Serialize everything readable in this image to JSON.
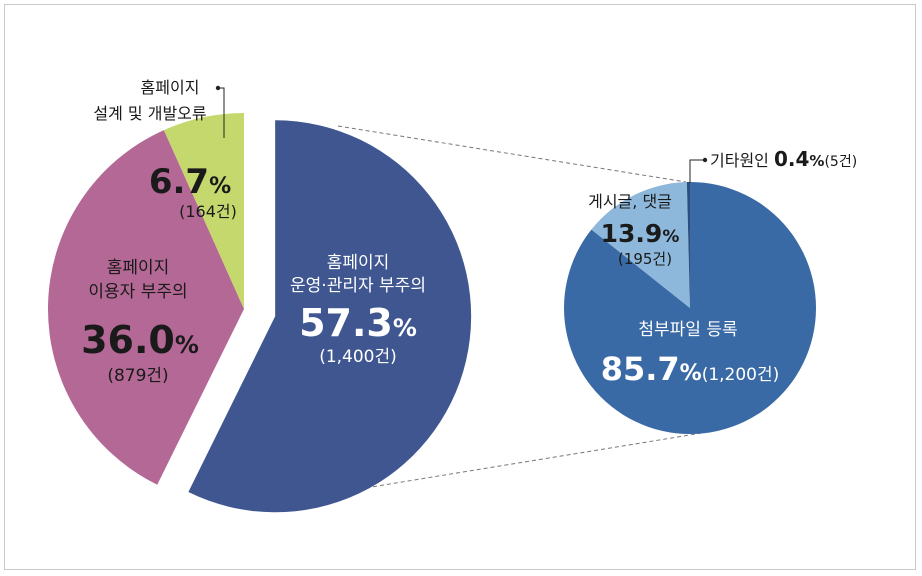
{
  "chart_data": [
    {
      "type": "pie",
      "exploded": "홈페이지 운영·관리자 부주의",
      "slices": [
        {
          "name": "홈페이지 운영·관리자 부주의",
          "lines": [
            "홈페이지",
            "운영·관리자 부주의"
          ],
          "percent": 57.3,
          "pct_text": "57.3",
          "count_text": "(1,400건)",
          "color": "#3f5691"
        },
        {
          "name": "홈페이지 이용자 부주의",
          "lines": [
            "홈페이지",
            "이용자 부주의"
          ],
          "percent": 36.0,
          "pct_text": "36.0",
          "count_text": "(879건)",
          "color": "#b46895"
        },
        {
          "name": "홈페이지 설계 및 개발오류",
          "lines": [
            "홈페이지",
            "설계 및 개발오류"
          ],
          "percent": 6.7,
          "pct_text": "6.7",
          "count_text": "(164건)",
          "color": "#c5d86d"
        }
      ],
      "percent_symbol": "%"
    },
    {
      "type": "pie",
      "breakdown_of": "홈페이지 운영·관리자 부주의",
      "slices": [
        {
          "name": "첨부파일 등록",
          "lines": [
            "첨부파일 등록"
          ],
          "percent": 85.7,
          "pct_text": "85.7",
          "count_text": "(1,200건)",
          "color": "#3a6aa5"
        },
        {
          "name": "게시글, 댓글",
          "lines": [
            "게시글, 댓글"
          ],
          "percent": 13.9,
          "pct_text": "13.9",
          "count_text": "(195건)",
          "color": "#8db8dc"
        },
        {
          "name": "기타원인",
          "lines": [
            "기타원인"
          ],
          "percent": 0.4,
          "pct_text": "0.4",
          "count_text": "(5건)",
          "color": "#2f4f80"
        }
      ],
      "percent_symbol": "%"
    }
  ]
}
